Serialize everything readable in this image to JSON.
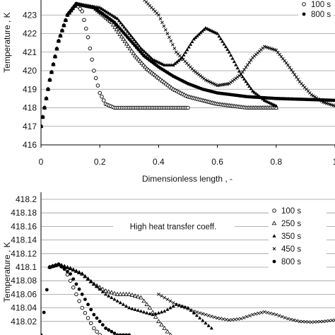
{
  "chart_data": [
    {
      "type": "line",
      "title": "",
      "xlabel": "Dimensionless length , -",
      "ylabel": "Temperature , K",
      "xlim": [
        0,
        1
      ],
      "ylim": [
        416,
        424
      ],
      "xticks": [
        "0",
        "0.2",
        "0.4",
        "0.6",
        "0.8",
        "1"
      ],
      "yticks": [
        "416",
        "417",
        "418",
        "419",
        "420",
        "421",
        "422",
        "423"
      ],
      "grid": "horizontal",
      "legend_position": "top-right",
      "legend": [
        {
          "label": "100 s",
          "marker": "open-circle"
        },
        {
          "label": "800 s",
          "marker": "filled-circle"
        }
      ],
      "series": [
        {
          "name": "100 s",
          "marker": "open-circle",
          "x": [
            0,
            0.03,
            0.06,
            0.09,
            0.12,
            0.14,
            0.16,
            0.18,
            0.2,
            0.22,
            0.25,
            0.3,
            0.4,
            0.5
          ],
          "y": [
            417.0,
            419.5,
            421.6,
            423.0,
            423.6,
            423.2,
            421.8,
            420.0,
            418.8,
            418.2,
            418.0,
            418.0,
            418.0,
            418.0
          ]
        },
        {
          "name": "250 s",
          "marker": "open-triangle",
          "x": [
            0,
            0.03,
            0.06,
            0.09,
            0.12,
            0.18,
            0.24,
            0.28,
            0.32,
            0.36,
            0.4,
            0.45,
            0.5,
            0.6,
            0.7,
            0.8
          ],
          "y": [
            417.0,
            419.5,
            421.6,
            423.0,
            423.6,
            423.4,
            422.6,
            421.7,
            420.8,
            420.1,
            419.6,
            419.0,
            418.6,
            418.2,
            418.0,
            418.0
          ]
        },
        {
          "name": "350 s",
          "marker": "filled-triangle",
          "x": [
            0,
            0.03,
            0.06,
            0.09,
            0.12,
            0.2,
            0.26,
            0.3,
            0.34,
            0.38,
            0.42,
            0.45,
            0.48,
            0.52,
            0.56,
            0.6,
            0.64,
            0.68,
            0.72,
            0.76,
            0.8
          ],
          "y": [
            417.0,
            419.5,
            421.6,
            423.0,
            423.6,
            423.4,
            422.8,
            422.0,
            421.2,
            420.6,
            420.3,
            420.3,
            420.7,
            421.7,
            422.3,
            422.0,
            421.0,
            419.8,
            418.9,
            418.4,
            418.1
          ]
        },
        {
          "name": "450 s",
          "marker": "cross",
          "x": [
            0.34,
            0.4,
            0.46,
            0.52,
            0.56,
            0.6,
            0.64,
            0.68,
            0.72,
            0.76,
            0.8,
            0.84,
            0.88,
            0.92,
            0.96,
            1.0
          ],
          "y": [
            424.0,
            423.0,
            421.0,
            420.0,
            419.5,
            419.2,
            419.3,
            419.8,
            420.7,
            421.3,
            421.1,
            420.3,
            419.4,
            418.7,
            418.3,
            418.1
          ]
        },
        {
          "name": "800 s",
          "marker": "filled-circle",
          "x": [
            0,
            0.03,
            0.06,
            0.09,
            0.12,
            0.18,
            0.25,
            0.3,
            0.35,
            0.4,
            0.45,
            0.5,
            0.55,
            0.6,
            0.7,
            0.8,
            0.9,
            1.0
          ],
          "y": [
            417.0,
            419.5,
            421.6,
            423.0,
            423.6,
            423.4,
            422.6,
            421.7,
            420.8,
            420.2,
            419.7,
            419.3,
            419.0,
            418.8,
            418.6,
            418.5,
            418.45,
            418.4
          ]
        }
      ]
    },
    {
      "type": "line",
      "title": "",
      "xlabel": "",
      "ylabel": "Temperature , K",
      "xlim": [
        0,
        1
      ],
      "ylim": [
        418.0,
        418.2
      ],
      "yticks": [
        "418.2",
        "418.18",
        "418.16",
        "418.14",
        "418.12",
        "418.1",
        "418.08",
        "418.06",
        "418.04",
        "418.02"
      ],
      "grid": "horizontal",
      "legend_position": "top-right",
      "annotation": "High heat transfer coeff.",
      "legend": [
        {
          "label": "100 s",
          "marker": "open-circle"
        },
        {
          "label": "250 s",
          "marker": "open-triangle"
        },
        {
          "label": "350 s",
          "marker": "filled-triangle"
        },
        {
          "label": "450 s",
          "marker": "cross"
        },
        {
          "label": "800 s",
          "marker": "filled-circle"
        }
      ],
      "series": [
        {
          "name": "100 s",
          "marker": "open-circle",
          "x": [
            0.03,
            0.06,
            0.08,
            0.1,
            0.12,
            0.14,
            0.16,
            0.18,
            0.2
          ],
          "y": [
            418.1,
            418.104,
            418.098,
            418.08,
            418.06,
            418.04,
            418.025,
            418.01,
            418.0
          ]
        },
        {
          "name": "250 s",
          "marker": "open-triangle",
          "x": [
            0.03,
            0.06,
            0.1,
            0.14,
            0.18,
            0.22,
            0.26,
            0.3,
            0.34,
            0.37,
            0.4,
            0.42,
            0.44
          ],
          "y": [
            418.1,
            418.104,
            418.098,
            418.09,
            418.075,
            418.065,
            418.06,
            418.06,
            418.055,
            418.04,
            418.02,
            418.01,
            418.0
          ]
        },
        {
          "name": "350 s",
          "marker": "filled-triangle",
          "x": [
            0.03,
            0.06,
            0.1,
            0.14,
            0.18,
            0.22,
            0.26,
            0.3,
            0.34,
            0.38,
            0.42,
            0.46,
            0.5,
            0.54,
            0.58
          ],
          "y": [
            418.1,
            418.104,
            418.098,
            418.09,
            418.075,
            418.06,
            418.05,
            418.04,
            418.035,
            418.03,
            418.035,
            418.045,
            418.04,
            418.025,
            418.01
          ]
        },
        {
          "name": "450 s",
          "marker": "cross",
          "x": [
            0.4,
            0.46,
            0.52,
            0.56,
            0.6,
            0.64,
            0.68,
            0.72,
            0.76,
            0.8,
            0.84,
            0.88,
            0.92,
            0.96,
            1.0
          ],
          "y": [
            418.06,
            418.045,
            418.035,
            418.03,
            418.025,
            418.022,
            418.024,
            418.03,
            418.034,
            418.03,
            418.024,
            418.02,
            418.019,
            418.02,
            418.022
          ]
        },
        {
          "name": "800 s",
          "marker": "filled-circle",
          "x": [
            0.0,
            0.03,
            0.06,
            0.1,
            0.14,
            0.18,
            0.22,
            0.26,
            0.3
          ],
          "y": [
            418.0,
            418.1,
            418.104,
            418.09,
            418.06,
            418.03,
            418.01,
            418.0,
            418.0
          ]
        }
      ]
    }
  ]
}
